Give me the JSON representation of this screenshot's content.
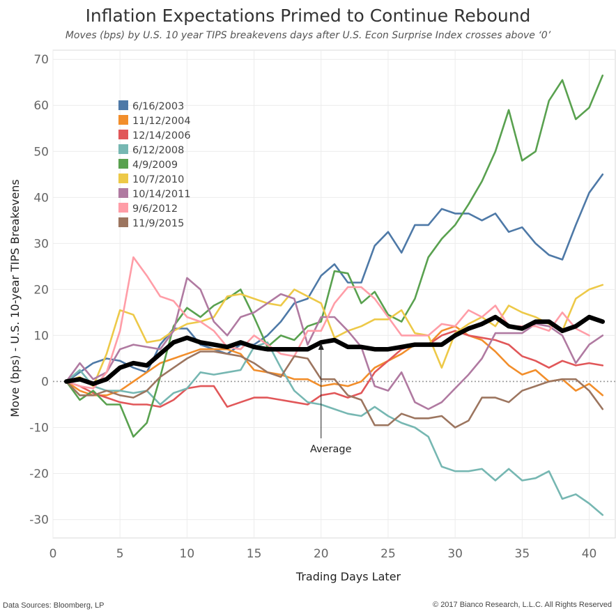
{
  "chart_data": {
    "type": "line",
    "title": "Inflation Expectations Primed to Continue Rebound",
    "subtitle": "Moves (bps) by U.S. 10 year TIPS breakevens days after U.S.  Econ Surprise Index crosses above ‘0’",
    "xlabel": "Trading Days Later",
    "ylabel": "Move (bps) - U.S. 10-year TIPS Breakevens",
    "xlim": [
      0,
      42
    ],
    "ylim": [
      -34,
      72
    ],
    "xticks": [
      0,
      5,
      10,
      15,
      20,
      25,
      30,
      35,
      40
    ],
    "yticks": [
      -30,
      -20,
      -10,
      0,
      10,
      20,
      30,
      40,
      50,
      60,
      70
    ],
    "grid": true,
    "legend_position": "top-left",
    "annotation": {
      "text": "Average",
      "x": 20,
      "y": 9
    },
    "series": [
      {
        "name": "6/16/2003",
        "color": "#4e79a7",
        "values": [
          0,
          2,
          4,
          5,
          4.5,
          3,
          2,
          8,
          11.5,
          11.5,
          8,
          7,
          6,
          8,
          8,
          10,
          13,
          17,
          18,
          23,
          25.5,
          21.5,
          21.5,
          29.5,
          32.5,
          28,
          34,
          34,
          37.5,
          36.5,
          36.5,
          35,
          36.5,
          32.5,
          33.5,
          30,
          27.5,
          26.5,
          34,
          41,
          45
        ]
      },
      {
        "name": "11/12/2004",
        "color": "#f28e2b",
        "values": [
          0,
          -2,
          -3,
          -3,
          -2,
          0,
          2,
          4,
          5,
          6,
          7,
          7,
          7,
          6,
          2.5,
          2,
          1.5,
          0.5,
          0.5,
          -1,
          -0.5,
          -1,
          0,
          3,
          4.5,
          6,
          8,
          8,
          11,
          12,
          10,
          9,
          6.5,
          3.5,
          1.5,
          2.5,
          0,
          0.5,
          -2,
          -0.5,
          -3
        ]
      },
      {
        "name": "12/14/2006",
        "color": "#e15759",
        "values": [
          0,
          -1,
          -2.5,
          -3.5,
          -4.5,
          -5,
          -5,
          -5.5,
          -4,
          -1.5,
          -1,
          -1,
          -5.5,
          -4.5,
          -3.5,
          -3.5,
          -4,
          -4.5,
          -5,
          -3,
          -2.5,
          -3.5,
          -2.5,
          2,
          4.5,
          7,
          8,
          8,
          10,
          11,
          10,
          9.5,
          9,
          8,
          5.5,
          4.5,
          3,
          4.5,
          3.5,
          4,
          3.5
        ]
      },
      {
        "name": "6/12/2008",
        "color": "#76b7b2",
        "values": [
          0,
          2.5,
          -1,
          -2,
          -2,
          -2.5,
          -2,
          -5,
          -2.5,
          -1.5,
          2,
          1.5,
          2,
          2.5,
          7.5,
          8.5,
          3,
          -2,
          -4.5,
          -5,
          -6,
          -7,
          -7.5,
          -5.5,
          -7.5,
          -9,
          -10,
          -12,
          -18.5,
          -19.5,
          -19.5,
          -19,
          -21.5,
          -19,
          -21.5,
          -21,
          -19.5,
          -25.5,
          -24.5,
          -26.5,
          -29
        ]
      },
      {
        "name": "4/9/2009",
        "color": "#59a14f",
        "values": [
          0,
          -4,
          -2,
          -5,
          -5,
          -12,
          -9,
          1,
          12,
          16,
          14,
          16.5,
          18,
          20,
          14,
          7.5,
          10,
          9,
          12,
          13,
          24,
          23.5,
          17,
          19.5,
          14.5,
          13,
          18,
          27,
          31,
          34,
          38.5,
          43.5,
          50,
          59,
          48,
          50,
          61,
          65.5,
          57,
          59.5,
          66.5
        ]
      },
      {
        "name": "10/7/2010",
        "color": "#edc948",
        "values": [
          0,
          1,
          -1,
          6,
          15.5,
          14.5,
          8.5,
          9,
          11,
          12.5,
          13,
          14,
          18.5,
          19,
          18,
          17,
          16.5,
          20,
          18.5,
          17,
          9.5,
          11,
          12,
          13.5,
          13.5,
          15.5,
          10.5,
          10,
          3,
          10.5,
          12.5,
          14,
          12,
          16.5,
          15,
          14,
          12.5,
          11,
          18,
          20,
          21
        ]
      },
      {
        "name": "10/14/2011",
        "color": "#b07aa1",
        "values": [
          0,
          4,
          0.5,
          2,
          7,
          8,
          7.5,
          7,
          11,
          22.5,
          20,
          13,
          10,
          14,
          15,
          17,
          19,
          18,
          8,
          14,
          14,
          11,
          7.5,
          -1,
          -2,
          2,
          -4.5,
          -6,
          -4.5,
          -1.5,
          1.5,
          5,
          10.5,
          10.5,
          10.5,
          12.5,
          12,
          10,
          4,
          8,
          10
        ]
      },
      {
        "name": "9/6/2012",
        "color": "#ff9da7",
        "values": [
          0,
          -1,
          -1.5,
          2,
          11,
          27,
          23,
          18.5,
          17.5,
          14,
          13,
          11,
          7.5,
          7,
          10,
          8,
          6,
          5.5,
          11,
          11,
          17,
          20.5,
          20.5,
          18,
          14,
          10,
          10,
          10,
          12.5,
          12,
          15.5,
          14,
          16.5,
          12,
          12,
          12,
          11,
          15,
          11.5,
          10
        ]
      },
      {
        "name": "11/9/2015",
        "color": "#9c755f",
        "values": [
          0,
          -3,
          -3,
          -2,
          -3,
          -3.5,
          -2,
          1,
          3,
          5,
          6.5,
          6.5,
          6,
          5.5,
          4,
          2,
          1,
          5.5,
          5,
          0.5,
          0.5,
          -3,
          -4,
          -9.5,
          -9.5,
          -7,
          -8,
          -8,
          -7.5,
          -10,
          -8.5,
          -3.5,
          -3.5,
          -4.5,
          -2,
          -1,
          0,
          0.5,
          0.5,
          -2,
          -6
        ]
      },
      {
        "name": "Average",
        "color": "#000000",
        "values": [
          0,
          0.5,
          -0.5,
          0.5,
          3,
          4,
          3.5,
          6,
          8.5,
          9.5,
          8.5,
          8,
          7.5,
          8.5,
          7.5,
          7,
          7,
          7,
          7,
          8.5,
          9,
          7.5,
          7.5,
          7,
          7,
          7.5,
          8,
          8,
          8,
          10,
          11.5,
          12.5,
          14,
          12,
          11.5,
          13,
          13,
          11,
          12,
          14,
          13
        ]
      }
    ]
  },
  "footer": {
    "source": "Data Sources: Bloomberg, LP",
    "copyright": "© 2017 Bianco Research, L.L.C. All Rights Reserved"
  }
}
